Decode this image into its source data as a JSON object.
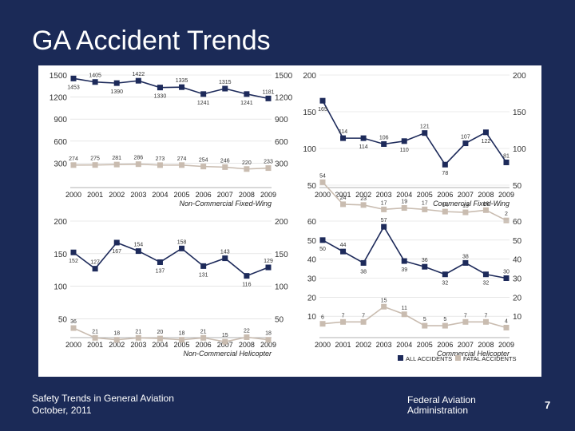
{
  "slide": {
    "title": "GA Accident Trends",
    "footer_line1": "Safety Trends in General Aviation",
    "footer_line2": "October, 2011",
    "org_line1": "Federal Aviation",
    "org_line2": "Administration",
    "page_number": "7"
  },
  "legend": {
    "all": "ALL ACCIDENTS",
    "fatal": "FATAL ACCIDENTS",
    "all_color": "#1d2a5a",
    "fatal_color": "#c9bcb0"
  },
  "chart_data": [
    {
      "type": "line",
      "title": "Non-Commercial Fixed-Wing",
      "categories": [
        "2000",
        "2001",
        "2002",
        "2003",
        "2004",
        "2005",
        "2006",
        "2007",
        "2008",
        "2009"
      ],
      "ylim": [
        0,
        1500
      ],
      "ticks": [
        300,
        600,
        900,
        1200,
        1500
      ],
      "series": [
        {
          "name": "ALL ACCIDENTS",
          "values": [
            1453,
            1405,
            1390,
            1422,
            1330,
            1335,
            1241,
            1315,
            1241,
            1181
          ]
        },
        {
          "name": "FATAL ACCIDENTS",
          "values": [
            274,
            275,
            281,
            286,
            273,
            274,
            254,
            246,
            220,
            233
          ]
        }
      ]
    },
    {
      "type": "line",
      "title": "Commercial Fixed-Wing",
      "categories": [
        "2000",
        "2001",
        "2002",
        "2003",
        "2004",
        "2005",
        "2006",
        "2007",
        "2008",
        "2009"
      ],
      "ylim": [
        50,
        200
      ],
      "ticks": [
        50,
        100,
        150,
        200
      ],
      "series": [
        {
          "name": "ALL ACCIDENTS",
          "values": [
            165,
            114,
            114,
            106,
            110,
            121,
            78,
            107,
            122,
            81
          ]
        },
        {
          "name": "FATAL ACCIDENTS",
          "values": [
            54,
            24,
            23,
            17,
            19,
            17,
            14,
            13,
            16,
            2
          ]
        }
      ]
    },
    {
      "type": "line",
      "title": "Non-Commercial Helicopter",
      "categories": [
        "2000",
        "2001",
        "2002",
        "2003",
        "2004",
        "2005",
        "2006",
        "2007",
        "2008",
        "2009"
      ],
      "ylim": [
        25,
        200
      ],
      "ticks": [
        50,
        100,
        150,
        200
      ],
      "series": [
        {
          "name": "ALL ACCIDENTS",
          "values": [
            152,
            127,
            167,
            154,
            137,
            158,
            131,
            143,
            116,
            129
          ]
        },
        {
          "name": "FATAL ACCIDENTS",
          "values": [
            36,
            21,
            18,
            21,
            20,
            18,
            21,
            15,
            22,
            18
          ]
        }
      ]
    },
    {
      "type": "line",
      "title": "Commercial Helicopter",
      "categories": [
        "2000",
        "2001",
        "2002",
        "2003",
        "2004",
        "2005",
        "2006",
        "2007",
        "2008",
        "2009"
      ],
      "ylim": [
        0,
        60
      ],
      "ticks": [
        10,
        20,
        30,
        40,
        50,
        60
      ],
      "series": [
        {
          "name": "ALL ACCIDENTS",
          "values": [
            50,
            44,
            38,
            57,
            39,
            36,
            32,
            38,
            32,
            30
          ]
        },
        {
          "name": "FATAL ACCIDENTS",
          "values": [
            6,
            7,
            7,
            15,
            11,
            5,
            5,
            7,
            7,
            4
          ]
        }
      ]
    }
  ]
}
